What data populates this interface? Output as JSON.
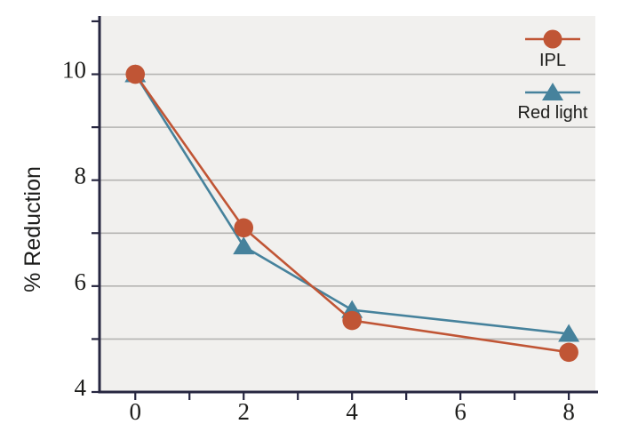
{
  "chart_data": {
    "type": "line",
    "title": "",
    "xlabel": "",
    "ylabel": "% Reduction",
    "x": [
      0,
      2,
      4,
      8
    ],
    "series": [
      {
        "name": "IPL",
        "marker": "circle",
        "color": "#c05535",
        "values": [
          10,
          7.1,
          5.35,
          4.75
        ]
      },
      {
        "name": "Red light",
        "marker": "triangle",
        "color": "#46829c",
        "values": [
          10,
          6.75,
          5.55,
          5.1
        ]
      }
    ],
    "xlim": [
      -0.66,
      8.49
    ],
    "ylim": [
      4,
      11.1
    ],
    "x_ticks": [
      0,
      1,
      2,
      3,
      4,
      5,
      6,
      7,
      8
    ],
    "y_ticks": [
      4,
      5,
      6,
      7,
      8,
      9,
      10,
      11
    ],
    "x_tick_labels": [
      {
        "x": 0,
        "label": "0"
      },
      {
        "x": 2,
        "label": "2"
      },
      {
        "x": 4,
        "label": "4"
      },
      {
        "x": 6,
        "label": "6"
      },
      {
        "x": 8,
        "label": "8"
      }
    ],
    "y_tick_labels": [
      {
        "y": 4,
        "label": "4"
      },
      {
        "y": 6,
        "label": "6"
      },
      {
        "y": 8,
        "label": "8"
      },
      {
        "y": 10,
        "label": "10"
      }
    ],
    "y_gridlines": [
      5,
      6,
      7,
      8,
      9,
      10
    ],
    "grid": "horizontal",
    "legend_position": "top-right",
    "colors": {
      "plot_bg": "#f1f0ee",
      "grid": "#b5b4b2",
      "axis": "#262640",
      "text": "#1d1d1b"
    }
  }
}
